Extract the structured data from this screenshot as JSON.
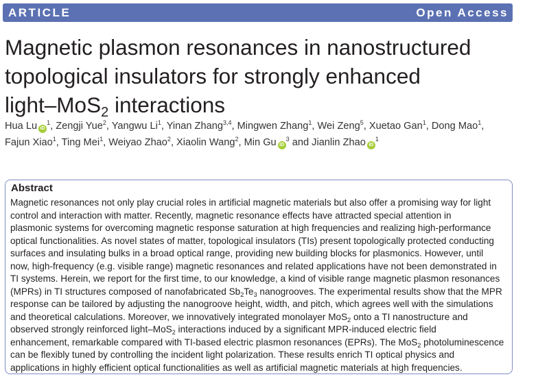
{
  "header": {
    "label_left": "ARTICLE",
    "label_right": "Open Access",
    "color": "#5b71b3"
  },
  "title": {
    "lines": [
      [
        {
          "t": "Magnetic plasmon resonances in nanostructured"
        }
      ],
      [
        {
          "t": "topological insulators for strongly enhanced"
        }
      ],
      [
        {
          "t": "light–MoS"
        },
        {
          "t": "2",
          "sub": true
        },
        {
          "t": " interactions"
        }
      ]
    ]
  },
  "authors": {
    "lines": [
      [
        {
          "name": "Hua Lu",
          "orcid": true,
          "aff": "1"
        },
        {
          "name": "Zengji Yue",
          "aff": "2"
        },
        {
          "name": "Yangwu Li",
          "aff": "1"
        },
        {
          "name": "Yinan Zhang",
          "aff": "3,4"
        },
        {
          "name": "Mingwen Zhang",
          "aff": "1"
        },
        {
          "name": "Wei Zeng",
          "aff": "5"
        },
        {
          "name": "Xuetao Gan",
          "aff": "1"
        },
        {
          "name": "Dong Mao",
          "aff": "1",
          "trail": ","
        }
      ],
      [
        {
          "name": "Fajun Xiao",
          "aff": "1"
        },
        {
          "name": "Ting Mei",
          "aff": "1"
        },
        {
          "name": "Weiyao Zhao",
          "aff": "2"
        },
        {
          "name": "Xiaolin Wang",
          "aff": "2"
        },
        {
          "name": "Min Gu",
          "orcid": true,
          "aff": "3",
          "sep": " and "
        },
        {
          "name": "Jianlin Zhao",
          "orcid": true,
          "aff": "1",
          "last": true
        }
      ]
    ],
    "orcid_label": "iD",
    "orcid_color": "#a6ce39"
  },
  "abstract": {
    "heading": "Abstract",
    "lines": [
      [
        {
          "t": "Magnetic resonances not only play crucial roles in artificial magnetic materials but also offer a promising way for light"
        }
      ],
      [
        {
          "t": "control and interaction with matter. Recently, magnetic resonance effects have attracted special attention in"
        }
      ],
      [
        {
          "t": "plasmonic systems for overcoming magnetic response saturation at high frequencies and realizing high-performance"
        }
      ],
      [
        {
          "t": "optical functionalities. As novel states of matter, topological insulators (TIs) present topologically protected conducting"
        }
      ],
      [
        {
          "t": "surfaces and insulating bulks in a broad optical range, providing new building blocks for plasmonics. However, until"
        }
      ],
      [
        {
          "t": "now, high-frequency (e.g. visible range) magnetic resonances and related applications have not been demonstrated in"
        }
      ],
      [
        {
          "t": "TI systems. Herein, we report for the first time, to our knowledge, a kind of visible range magnetic plasmon resonances"
        }
      ],
      [
        {
          "t": "(MPRs) in TI structures composed of nanofabricated Sb"
        },
        {
          "t": "2",
          "sub": true
        },
        {
          "t": "Te"
        },
        {
          "t": "3",
          "sub": true
        },
        {
          "t": " nanogrooves. The experimental results show that the MPR"
        }
      ],
      [
        {
          "t": "response can be tailored by adjusting the nanogroove height, width, and pitch, which agrees well with the simulations"
        }
      ],
      [
        {
          "t": "and theoretical calculations. Moreover, we innovatively integrated monolayer MoS"
        },
        {
          "t": "2",
          "sub": true
        },
        {
          "t": " onto a TI nanostructure and"
        }
      ],
      [
        {
          "t": "observed strongly reinforced light–MoS"
        },
        {
          "t": "2",
          "sub": true
        },
        {
          "t": " interactions induced by a significant MPR-induced electric field"
        }
      ],
      [
        {
          "t": "enhancement, remarkable compared with TI-based electric plasmon resonances (EPRs). The MoS"
        },
        {
          "t": "2",
          "sub": true
        },
        {
          "t": " photoluminescence"
        }
      ],
      [
        {
          "t": "can be flexibly tuned by controlling the incident light polarization. These results enrich TI optical physics and"
        }
      ],
      [
        {
          "t": "applications in highly efficient optical functionalities as well as artificial magnetic materials at high frequencies."
        }
      ]
    ]
  }
}
